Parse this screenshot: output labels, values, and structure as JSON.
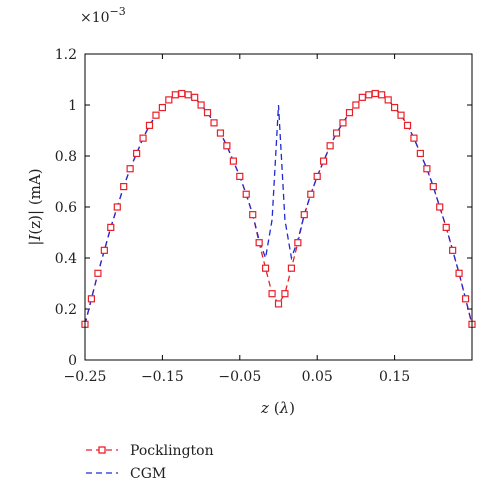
{
  "chart_data": {
    "type": "line",
    "multiplier_label": "×10",
    "multiplier_exponent": "−3",
    "xlabel_var": "z",
    "xlabel_unit": "λ",
    "ylabel_prefix": "|",
    "ylabel_var": "I",
    "ylabel_suffix": "(z)| (mA)",
    "xlim": [
      -0.25,
      0.25
    ],
    "ylim": [
      0,
      1.2
    ],
    "x_ticks": [
      -0.25,
      -0.15,
      -0.05,
      0.05,
      0.15
    ],
    "x_tick_labels": [
      "−0.25",
      "−0.15",
      "−0.05",
      "0.05",
      "0.15"
    ],
    "y_ticks": [
      0,
      0.2,
      0.4,
      0.6,
      0.8,
      1.0,
      1.2
    ],
    "y_tick_labels": [
      "0",
      "0.2",
      "0.4",
      "0.6",
      "0.8",
      "1",
      "1.2"
    ],
    "legend": {
      "placement": "below-left",
      "entries": [
        "Pocklington",
        "CGM"
      ]
    },
    "colors": {
      "pocklington": "#e8202a",
      "cgm": "#1f2ad6"
    },
    "series": [
      {
        "name": "Pocklington",
        "style": "red dashed line with square markers",
        "x": [
          -0.25,
          -0.2417,
          -0.2333,
          -0.225,
          -0.2167,
          -0.2083,
          -0.2,
          -0.1917,
          -0.1833,
          -0.175,
          -0.1667,
          -0.1583,
          -0.15,
          -0.1417,
          -0.1333,
          -0.125,
          -0.1167,
          -0.1083,
          -0.1,
          -0.0917,
          -0.0833,
          -0.075,
          -0.0667,
          -0.0583,
          -0.05,
          -0.0417,
          -0.0333,
          -0.025,
          -0.0167,
          -0.0083,
          0,
          0.0083,
          0.0167,
          0.025,
          0.0333,
          0.0417,
          0.05,
          0.0583,
          0.0667,
          0.075,
          0.0833,
          0.0917,
          0.1,
          0.1083,
          0.1167,
          0.125,
          0.1333,
          0.1417,
          0.15,
          0.1583,
          0.1667,
          0.175,
          0.1833,
          0.1917,
          0.2,
          0.2083,
          0.2167,
          0.225,
          0.2333,
          0.2417,
          0.25
        ],
        "y": [
          0.14,
          0.24,
          0.34,
          0.43,
          0.52,
          0.6,
          0.68,
          0.75,
          0.81,
          0.87,
          0.92,
          0.96,
          0.99,
          1.02,
          1.04,
          1.045,
          1.04,
          1.03,
          1.0,
          0.97,
          0.93,
          0.89,
          0.84,
          0.78,
          0.72,
          0.65,
          0.57,
          0.46,
          0.36,
          0.26,
          0.22,
          0.26,
          0.36,
          0.46,
          0.57,
          0.65,
          0.72,
          0.78,
          0.84,
          0.89,
          0.93,
          0.97,
          1.0,
          1.03,
          1.04,
          1.045,
          1.04,
          1.02,
          0.99,
          0.96,
          0.92,
          0.87,
          0.81,
          0.75,
          0.68,
          0.6,
          0.52,
          0.43,
          0.34,
          0.24,
          0.14
        ]
      },
      {
        "name": "CGM",
        "style": "blue dashed line",
        "x": [
          -0.25,
          -0.2417,
          -0.2333,
          -0.225,
          -0.2167,
          -0.2083,
          -0.2,
          -0.1917,
          -0.1833,
          -0.175,
          -0.1667,
          -0.1583,
          -0.15,
          -0.1417,
          -0.1333,
          -0.125,
          -0.1167,
          -0.1083,
          -0.1,
          -0.0917,
          -0.0833,
          -0.075,
          -0.0667,
          -0.0583,
          -0.05,
          -0.0417,
          -0.0333,
          -0.025,
          -0.0167,
          -0.0083,
          0,
          0.0083,
          0.0167,
          0.025,
          0.0333,
          0.0417,
          0.05,
          0.0583,
          0.0667,
          0.075,
          0.0833,
          0.0917,
          0.1,
          0.1083,
          0.1167,
          0.125,
          0.1333,
          0.1417,
          0.15,
          0.1583,
          0.1667,
          0.175,
          0.1833,
          0.1917,
          0.2,
          0.2083,
          0.2167,
          0.225,
          0.2333,
          0.2417,
          0.25
        ],
        "y": [
          0.14,
          0.24,
          0.34,
          0.43,
          0.52,
          0.6,
          0.68,
          0.75,
          0.81,
          0.87,
          0.92,
          0.96,
          0.99,
          1.02,
          1.04,
          1.045,
          1.04,
          1.03,
          1.0,
          0.97,
          0.93,
          0.89,
          0.84,
          0.78,
          0.72,
          0.65,
          0.57,
          0.47,
          0.4,
          0.55,
          1.0,
          0.55,
          0.4,
          0.47,
          0.57,
          0.65,
          0.72,
          0.78,
          0.84,
          0.89,
          0.93,
          0.97,
          1.0,
          1.03,
          1.04,
          1.045,
          1.04,
          1.02,
          0.99,
          0.96,
          0.92,
          0.87,
          0.81,
          0.75,
          0.68,
          0.6,
          0.52,
          0.43,
          0.34,
          0.24,
          0.14
        ]
      }
    ]
  }
}
